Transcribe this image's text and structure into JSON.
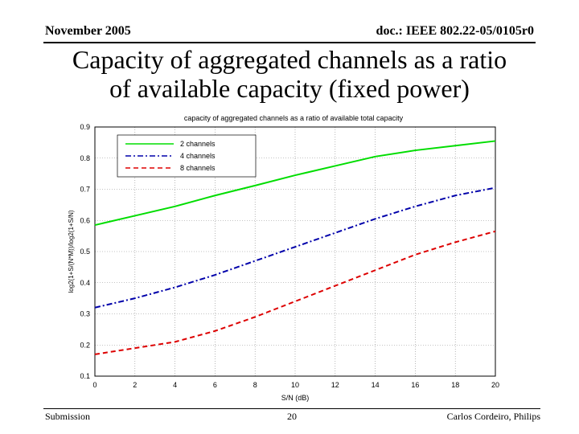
{
  "header": {
    "date": "November 2005",
    "doc_id": "doc.: IEEE 802.22-05/0105r0"
  },
  "slide": {
    "title_line1": "Capacity of aggregated channels as a ratio",
    "title_line2": "of available capacity (fixed power)"
  },
  "footer": {
    "left": "Submission",
    "page": "20",
    "author": "Carlos Cordeiro, Philips"
  },
  "chart_data": {
    "type": "line",
    "title": "capacity of aggregated channels as a ratio of available total capacity",
    "xlabel": "S/N (dB)",
    "ylabel": "log2(1+S/(N*M))/log2(1+S/N)",
    "xlim": [
      0,
      20
    ],
    "ylim": [
      0.1,
      0.9
    ],
    "xticks": [
      "0",
      "2",
      "4",
      "6",
      "8",
      "10",
      "12",
      "14",
      "16",
      "18",
      "20"
    ],
    "yticks": [
      "0.1",
      "0.2",
      "0.3",
      "0.4",
      "0.5",
      "0.6",
      "0.7",
      "0.8",
      "0.9"
    ],
    "grid": true,
    "legend_position": "top-left",
    "x": [
      0,
      2,
      4,
      6,
      8,
      10,
      12,
      14,
      16,
      18,
      20
    ],
    "series": [
      {
        "name": "2 channels",
        "color": "#00dd00",
        "dash": "solid",
        "values": [
          0.585,
          0.615,
          0.645,
          0.68,
          0.712,
          0.745,
          0.775,
          0.805,
          0.825,
          0.84,
          0.855
        ]
      },
      {
        "name": "4 channels",
        "color": "#0000aa",
        "dash": "dashdot",
        "values": [
          0.32,
          0.35,
          0.385,
          0.425,
          0.47,
          0.515,
          0.56,
          0.605,
          0.645,
          0.68,
          0.705
        ]
      },
      {
        "name": "8 channels",
        "color": "#dd0000",
        "dash": "dashed",
        "values": [
          0.17,
          0.19,
          0.21,
          0.245,
          0.29,
          0.34,
          0.39,
          0.44,
          0.49,
          0.53,
          0.565
        ]
      }
    ]
  }
}
